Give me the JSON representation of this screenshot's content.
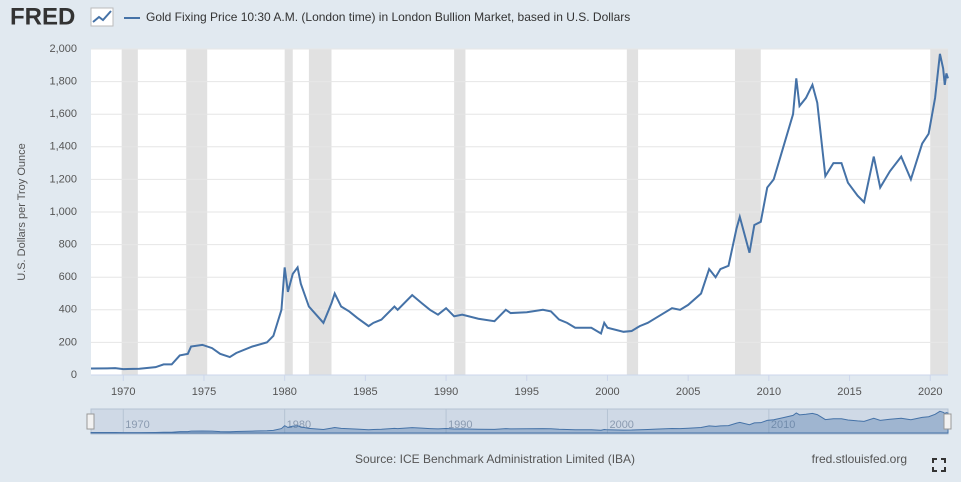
{
  "chart_data": {
    "type": "line",
    "logo": "FRED",
    "y_label": "U.S. Dollars per Troy Ounce",
    "source": "Source: ICE Benchmark Administration Limited (IBA)",
    "site": "fred.stlouisfed.org",
    "xlim": [
      1968,
      2021.1
    ],
    "xticks": [
      1970,
      1975,
      1980,
      1985,
      1990,
      1995,
      2000,
      2005,
      2010,
      2015,
      2020
    ],
    "navigator_ticks": [
      1970,
      1980,
      1990,
      2000,
      2010
    ],
    "ylim": [
      0,
      2000
    ],
    "yticks": [
      0,
      200,
      400,
      600,
      800,
      {
        "value": 1000,
        "label": "1,000"
      },
      {
        "value": 1200,
        "label": "1,200"
      },
      {
        "value": 1400,
        "label": "1,400"
      },
      {
        "value": 1600,
        "label": "1,600"
      },
      {
        "value": 1800,
        "label": "1,800"
      },
      {
        "value": 2000,
        "label": "2,000"
      }
    ],
    "grid": true,
    "recessions": [
      [
        1969.9,
        1970.9
      ],
      [
        1973.9,
        1975.2
      ],
      [
        1980.0,
        1980.5
      ],
      [
        1981.5,
        1982.9
      ],
      [
        1990.5,
        1991.2
      ],
      [
        2001.2,
        2001.9
      ],
      [
        2007.9,
        2009.5
      ],
      [
        2020.0,
        2021.1
      ]
    ],
    "recession_color": "#e1e1e1",
    "x": [
      1968,
      1969,
      1969.5,
      1970,
      1971,
      1972,
      1972.5,
      1973,
      1973.5,
      1974,
      1974.2,
      1974.9,
      1975.5,
      1976,
      1976.6,
      1977,
      1978,
      1978.9,
      1979.3,
      1979.8,
      1980.0,
      1980.2,
      1980.5,
      1980.8,
      1981,
      1981.5,
      1982.4,
      1982.9,
      1983.1,
      1983.5,
      1984,
      1984.5,
      1985.2,
      1985.5,
      1986,
      1986.8,
      1987,
      1987.9,
      1988.5,
      1989,
      1989.5,
      1990,
      1990.5,
      1991,
      1992,
      1993,
      1993.7,
      1994,
      1995,
      1996,
      1996.5,
      1997,
      1997.5,
      1998,
      1999,
      1999.6,
      1999.8,
      2000,
      2001,
      2001.5,
      2002,
      2002.5,
      2003,
      2004,
      2004.5,
      2005,
      2005.8,
      2006.3,
      2006.7,
      2007,
      2007.5,
      2008.0,
      2008.2,
      2008.8,
      2009.1,
      2009.5,
      2009.9,
      2010.3,
      2010.9,
      2011.5,
      2011.7,
      2011.9,
      2012.3,
      2012.7,
      2013,
      2013.3,
      2013.5,
      2014,
      2014.5,
      2014.9,
      2015.5,
      2015.9,
      2016.5,
      2016.9,
      2017.5,
      2018.2,
      2018.8,
      2019.5,
      2019.9,
      2020.3,
      2020.6,
      2020.8,
      2020.9,
      2021.0,
      2021.1
    ],
    "series": [
      {
        "name": "Gold Fixing Price 10:30 A.M. (London time) in London Bullion Market, based in U.S. Dollars",
        "color": "#4572a7",
        "values": [
          40,
          41,
          42,
          36,
          38,
          48,
          65,
          65,
          120,
          130,
          175,
          185,
          165,
          130,
          110,
          135,
          175,
          200,
          240,
          400,
          660,
          510,
          620,
          660,
          560,
          420,
          320,
          440,
          500,
          420,
          390,
          350,
          300,
          320,
          340,
          420,
          400,
          490,
          440,
          400,
          370,
          410,
          360,
          370,
          345,
          330,
          400,
          380,
          385,
          400,
          390,
          340,
          320,
          290,
          290,
          255,
          320,
          290,
          265,
          270,
          300,
          320,
          350,
          410,
          400,
          430,
          500,
          650,
          600,
          650,
          670,
          900,
          970,
          750,
          920,
          940,
          1150,
          1200,
          1400,
          1600,
          1820,
          1650,
          1700,
          1780,
          1670,
          1400,
          1220,
          1300,
          1300,
          1180,
          1100,
          1060,
          1340,
          1150,
          1250,
          1340,
          1200,
          1420,
          1480,
          1700,
          1970,
          1880,
          1780,
          1850,
          1820
        ]
      }
    ]
  }
}
